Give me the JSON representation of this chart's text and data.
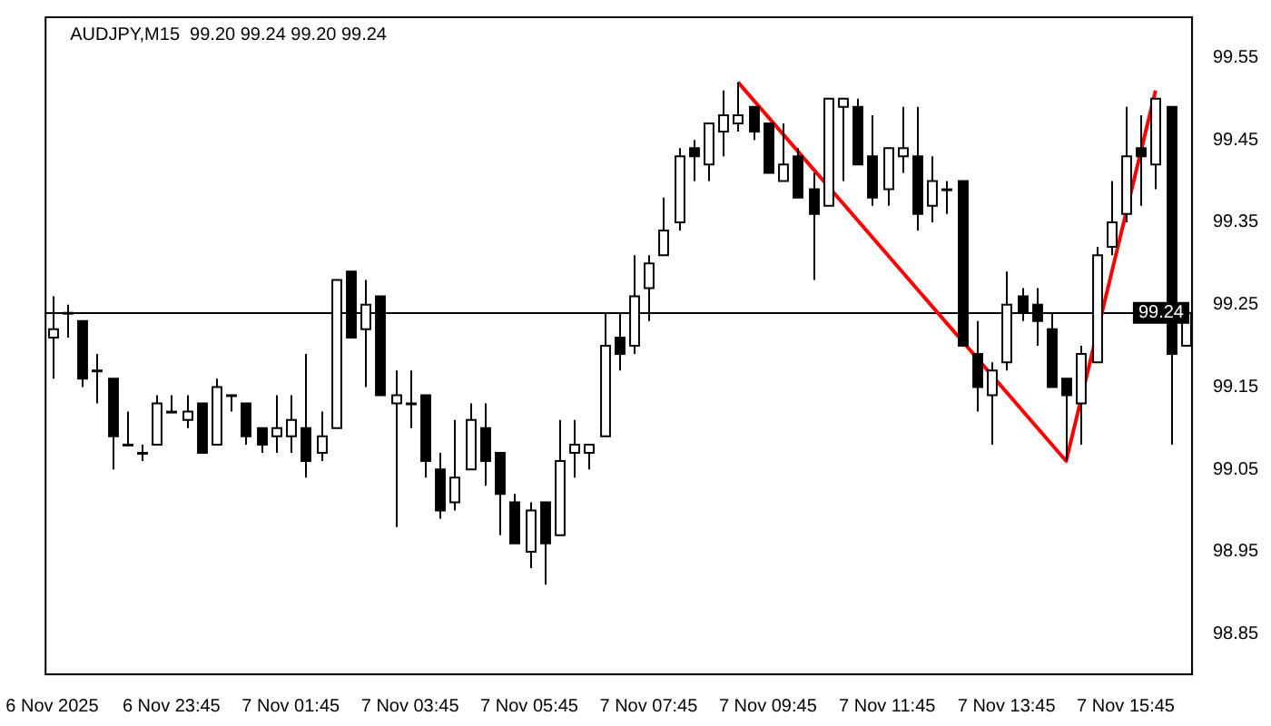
{
  "chart_data": {
    "type": "candlestick",
    "title": "AUDJPY,M15  99.20 99.24 99.20 99.24",
    "categories": [
      "6 Nov 2025",
      null,
      null,
      null,
      null,
      null,
      null,
      null,
      "6 Nov 23:45",
      null,
      null,
      null,
      null,
      null,
      null,
      null,
      "7 Nov 01:45",
      null,
      null,
      null,
      null,
      null,
      null,
      null,
      "7 Nov 03:45",
      null,
      null,
      null,
      null,
      null,
      null,
      null,
      "7 Nov 05:45",
      null,
      null,
      null,
      null,
      null,
      null,
      null,
      "7 Nov 07:45",
      null,
      null,
      null,
      null,
      null,
      null,
      null,
      "7 Nov 09:45",
      null,
      null,
      null,
      null,
      null,
      null,
      null,
      "7 Nov 11:45",
      null,
      null,
      null,
      null,
      null,
      null,
      null,
      "7 Nov 13:45",
      null,
      null,
      null,
      null,
      null,
      null,
      null,
      "7 Nov 15:45",
      null,
      null,
      null,
      null
    ],
    "ohlc": [
      [
        99.21,
        99.26,
        99.16,
        99.22
      ],
      [
        99.24,
        99.25,
        99.21,
        99.24
      ],
      [
        99.23,
        99.23,
        99.15,
        99.16
      ],
      [
        99.17,
        99.19,
        99.13,
        99.17
      ],
      [
        99.16,
        99.16,
        99.05,
        99.09
      ],
      [
        99.08,
        99.12,
        99.08,
        99.08
      ],
      [
        99.07,
        99.08,
        99.06,
        99.07
      ],
      [
        99.08,
        99.14,
        99.08,
        99.13
      ],
      [
        99.12,
        99.14,
        99.12,
        99.12
      ],
      [
        99.11,
        99.14,
        99.1,
        99.12
      ],
      [
        99.13,
        99.13,
        99.07,
        99.07
      ],
      [
        99.08,
        99.16,
        99.08,
        99.15
      ],
      [
        99.14,
        99.14,
        99.12,
        99.14
      ],
      [
        99.13,
        99.13,
        99.08,
        99.09
      ],
      [
        99.1,
        99.1,
        99.07,
        99.08
      ],
      [
        99.09,
        99.14,
        99.07,
        99.1
      ],
      [
        99.09,
        99.14,
        99.07,
        99.11
      ],
      [
        99.1,
        99.19,
        99.04,
        99.06
      ],
      [
        99.07,
        99.12,
        99.06,
        99.09
      ],
      [
        99.1,
        99.28,
        99.1,
        99.28
      ],
      [
        99.29,
        99.29,
        99.21,
        99.21
      ],
      [
        99.22,
        99.28,
        99.15,
        99.25
      ],
      [
        99.26,
        99.26,
        99.14,
        99.14
      ],
      [
        99.13,
        99.17,
        98.98,
        99.14
      ],
      [
        99.13,
        99.17,
        99.1,
        99.13
      ],
      [
        99.14,
        99.14,
        99.04,
        99.06
      ],
      [
        99.05,
        99.07,
        98.99,
        99.0
      ],
      [
        99.01,
        99.11,
        99.0,
        99.04
      ],
      [
        99.05,
        99.13,
        99.05,
        99.11
      ],
      [
        99.1,
        99.13,
        99.03,
        99.06
      ],
      [
        99.07,
        99.07,
        98.97,
        99.02
      ],
      [
        99.01,
        99.02,
        98.96,
        98.96
      ],
      [
        98.95,
        99.01,
        98.93,
        99.0
      ],
      [
        99.01,
        99.01,
        98.91,
        98.96
      ],
      [
        98.97,
        99.11,
        98.97,
        99.06
      ],
      [
        99.07,
        99.11,
        99.04,
        99.08
      ],
      [
        99.07,
        99.08,
        99.05,
        99.08
      ],
      [
        99.09,
        99.24,
        99.09,
        99.2
      ],
      [
        99.21,
        99.24,
        99.17,
        99.19
      ],
      [
        99.2,
        99.31,
        99.19,
        99.26
      ],
      [
        99.27,
        99.31,
        99.23,
        99.3
      ],
      [
        99.31,
        99.38,
        99.31,
        99.34
      ],
      [
        99.35,
        99.44,
        99.34,
        99.43
      ],
      [
        99.44,
        99.45,
        99.4,
        99.43
      ],
      [
        99.42,
        99.47,
        99.4,
        99.47
      ],
      [
        99.46,
        99.51,
        99.43,
        99.48
      ],
      [
        99.47,
        99.52,
        99.46,
        99.48
      ],
      [
        99.49,
        99.49,
        99.45,
        99.46
      ],
      [
        99.47,
        99.47,
        99.41,
        99.41
      ],
      [
        99.4,
        99.47,
        99.4,
        99.42
      ],
      [
        99.43,
        99.44,
        99.38,
        99.38
      ],
      [
        99.39,
        99.41,
        99.28,
        99.36
      ],
      [
        99.37,
        99.5,
        99.37,
        99.5
      ],
      [
        99.49,
        99.5,
        99.4,
        99.5
      ],
      [
        99.49,
        99.5,
        99.42,
        99.42
      ],
      [
        99.43,
        99.48,
        99.37,
        99.38
      ],
      [
        99.39,
        99.44,
        99.37,
        99.44
      ],
      [
        99.43,
        99.49,
        99.41,
        99.44
      ],
      [
        99.43,
        99.49,
        99.34,
        99.36
      ],
      [
        99.37,
        99.43,
        99.35,
        99.4
      ],
      [
        99.39,
        99.4,
        99.36,
        99.39
      ],
      [
        99.4,
        99.4,
        99.2,
        99.2
      ],
      [
        99.19,
        99.23,
        99.12,
        99.15
      ],
      [
        99.14,
        99.18,
        99.08,
        99.17
      ],
      [
        99.18,
        99.29,
        99.17,
        99.25
      ],
      [
        99.26,
        99.27,
        99.23,
        99.24
      ],
      [
        99.25,
        99.27,
        99.2,
        99.23
      ],
      [
        99.22,
        99.24,
        99.15,
        99.15
      ],
      [
        99.16,
        99.16,
        99.06,
        99.14
      ],
      [
        99.13,
        99.2,
        99.08,
        99.19
      ],
      [
        99.18,
        99.32,
        99.18,
        99.31
      ],
      [
        99.32,
        99.4,
        99.31,
        99.35
      ],
      [
        99.36,
        99.49,
        99.35,
        99.43
      ],
      [
        99.44,
        99.48,
        99.37,
        99.43
      ],
      [
        99.42,
        99.5,
        99.39,
        99.5
      ],
      [
        99.49,
        99.49,
        99.08,
        99.19
      ],
      [
        99.2,
        99.24,
        99.2,
        99.24
      ]
    ],
    "series": [
      {
        "type": "line",
        "color": "#ff0000",
        "values": [
          null,
          null,
          null,
          null,
          null,
          null,
          null,
          null,
          null,
          null,
          null,
          null,
          null,
          null,
          null,
          null,
          null,
          null,
          null,
          null,
          null,
          null,
          null,
          null,
          null,
          null,
          null,
          null,
          null,
          null,
          null,
          null,
          null,
          null,
          null,
          null,
          null,
          null,
          null,
          null,
          null,
          null,
          null,
          null,
          null,
          null,
          99.52,
          null,
          null,
          null,
          null,
          null,
          null,
          null,
          null,
          null,
          null,
          null,
          null,
          null,
          null,
          null,
          null,
          null,
          null,
          null,
          null,
          null,
          99.06,
          null,
          null,
          null,
          null,
          null,
          99.51,
          null,
          null
        ]
      }
    ],
    "ylim": [
      98.8,
      99.6
    ],
    "yticks": [
      98.85,
      98.95,
      99.05,
      99.15,
      99.25,
      99.35,
      99.45,
      99.55
    ],
    "ref_lines": [
      {
        "axis": "y",
        "value": 99.24,
        "label": "99.24",
        "color": "#000000"
      }
    ],
    "grid": false,
    "legend": false,
    "marker": "none",
    "line_style": "solid"
  }
}
